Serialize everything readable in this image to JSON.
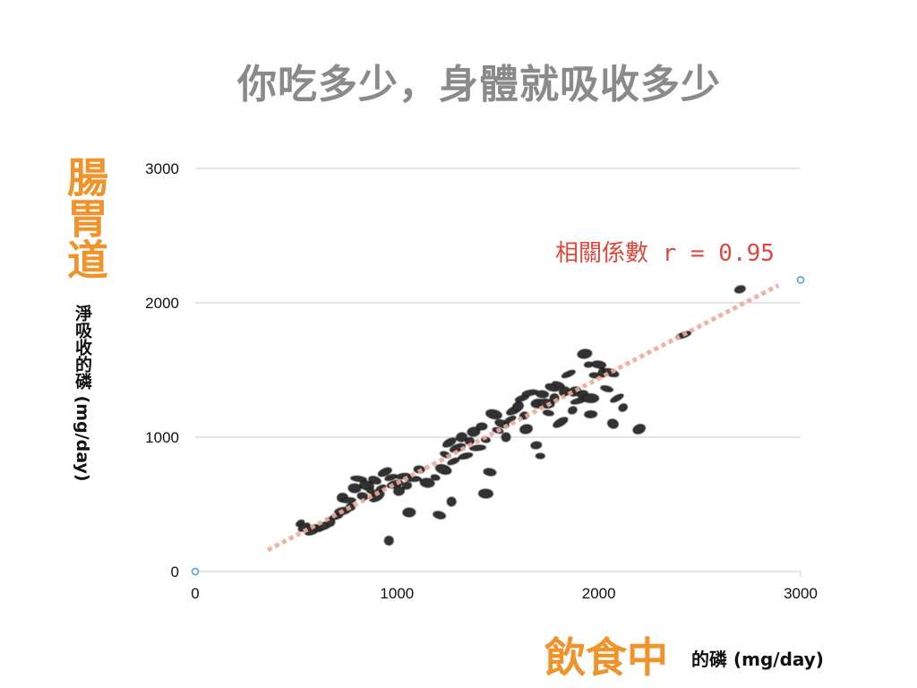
{
  "title": "你吃多少，身體就吸收多少",
  "chart_data": {
    "type": "scatter",
    "title": "你吃多少，身體就吸收多少",
    "xlabel_main": "飲食中",
    "xlabel_sub": "的磷 (mg/day)",
    "ylabel_main": "腸胃道",
    "ylabel_sub": "淨吸收的磷 (mg/day)",
    "annotation": "相關係數 r = 0.95",
    "xlim": [
      0,
      3000
    ],
    "ylim": [
      0,
      3000
    ],
    "x_ticks": [
      "0",
      "1000",
      "2000",
      "3000"
    ],
    "y_ticks": [
      "0",
      "1000",
      "2000",
      "3000"
    ],
    "grid": "horizontal",
    "colors": {
      "points": "#333333",
      "trendline": "#f0a99a",
      "annotation": "#e0483e",
      "title_accent": "#f0932b",
      "axis_markers": "#4a9fd8"
    },
    "axis_markers": [
      {
        "x": 0,
        "y": 0
      },
      {
        "x": 3000,
        "y": 2170
      }
    ],
    "trendline": {
      "x": [
        360,
        2890
      ],
      "y": [
        160,
        2130
      ]
    },
    "points": [
      {
        "x": 520,
        "y": 360
      },
      {
        "x": 540,
        "y": 330
      },
      {
        "x": 580,
        "y": 310
      },
      {
        "x": 620,
        "y": 320
      },
      {
        "x": 640,
        "y": 340
      },
      {
        "x": 670,
        "y": 370
      },
      {
        "x": 700,
        "y": 410
      },
      {
        "x": 730,
        "y": 450
      },
      {
        "x": 730,
        "y": 550
      },
      {
        "x": 760,
        "y": 530
      },
      {
        "x": 770,
        "y": 480
      },
      {
        "x": 790,
        "y": 620
      },
      {
        "x": 810,
        "y": 690
      },
      {
        "x": 830,
        "y": 560
      },
      {
        "x": 850,
        "y": 640
      },
      {
        "x": 870,
        "y": 600
      },
      {
        "x": 890,
        "y": 680
      },
      {
        "x": 900,
        "y": 560
      },
      {
        "x": 920,
        "y": 620
      },
      {
        "x": 940,
        "y": 740
      },
      {
        "x": 960,
        "y": 230
      },
      {
        "x": 970,
        "y": 700
      },
      {
        "x": 990,
        "y": 650
      },
      {
        "x": 1010,
        "y": 600
      },
      {
        "x": 1030,
        "y": 710
      },
      {
        "x": 1050,
        "y": 640
      },
      {
        "x": 1060,
        "y": 440
      },
      {
        "x": 1080,
        "y": 690
      },
      {
        "x": 1110,
        "y": 760
      },
      {
        "x": 1150,
        "y": 660
      },
      {
        "x": 1190,
        "y": 700
      },
      {
        "x": 1210,
        "y": 420
      },
      {
        "x": 1230,
        "y": 760
      },
      {
        "x": 1240,
        "y": 870
      },
      {
        "x": 1260,
        "y": 960
      },
      {
        "x": 1270,
        "y": 520
      },
      {
        "x": 1280,
        "y": 820
      },
      {
        "x": 1300,
        "y": 920
      },
      {
        "x": 1320,
        "y": 1000
      },
      {
        "x": 1340,
        "y": 860
      },
      {
        "x": 1360,
        "y": 970
      },
      {
        "x": 1380,
        "y": 1040
      },
      {
        "x": 1400,
        "y": 920
      },
      {
        "x": 1420,
        "y": 1080
      },
      {
        "x": 1440,
        "y": 580
      },
      {
        "x": 1440,
        "y": 980
      },
      {
        "x": 1460,
        "y": 740
      },
      {
        "x": 1480,
        "y": 1170
      },
      {
        "x": 1500,
        "y": 1050
      },
      {
        "x": 1520,
        "y": 1100
      },
      {
        "x": 1540,
        "y": 1000
      },
      {
        "x": 1560,
        "y": 1130
      },
      {
        "x": 1580,
        "y": 1200
      },
      {
        "x": 1600,
        "y": 1230
      },
      {
        "x": 1620,
        "y": 1290
      },
      {
        "x": 1630,
        "y": 1160
      },
      {
        "x": 1640,
        "y": 1060
      },
      {
        "x": 1660,
        "y": 1330
      },
      {
        "x": 1690,
        "y": 940
      },
      {
        "x": 1700,
        "y": 1250
      },
      {
        "x": 1710,
        "y": 860
      },
      {
        "x": 1720,
        "y": 1320
      },
      {
        "x": 1740,
        "y": 1250
      },
      {
        "x": 1750,
        "y": 1180
      },
      {
        "x": 1770,
        "y": 1370
      },
      {
        "x": 1780,
        "y": 1290
      },
      {
        "x": 1800,
        "y": 1390
      },
      {
        "x": 1810,
        "y": 1110
      },
      {
        "x": 1830,
        "y": 1340
      },
      {
        "x": 1850,
        "y": 1470
      },
      {
        "x": 1870,
        "y": 1200
      },
      {
        "x": 1880,
        "y": 1340
      },
      {
        "x": 1900,
        "y": 1270
      },
      {
        "x": 1920,
        "y": 1320
      },
      {
        "x": 1930,
        "y": 1620
      },
      {
        "x": 1950,
        "y": 1540
      },
      {
        "x": 1960,
        "y": 1170
      },
      {
        "x": 1960,
        "y": 1290
      },
      {
        "x": 1980,
        "y": 1460
      },
      {
        "x": 2000,
        "y": 1540
      },
      {
        "x": 2020,
        "y": 1480
      },
      {
        "x": 2040,
        "y": 1360
      },
      {
        "x": 2060,
        "y": 1480
      },
      {
        "x": 2070,
        "y": 1100
      },
      {
        "x": 2090,
        "y": 1290
      },
      {
        "x": 2120,
        "y": 1220
      },
      {
        "x": 2200,
        "y": 1060
      },
      {
        "x": 2420,
        "y": 1760
      },
      {
        "x": 2700,
        "y": 2100
      }
    ]
  }
}
